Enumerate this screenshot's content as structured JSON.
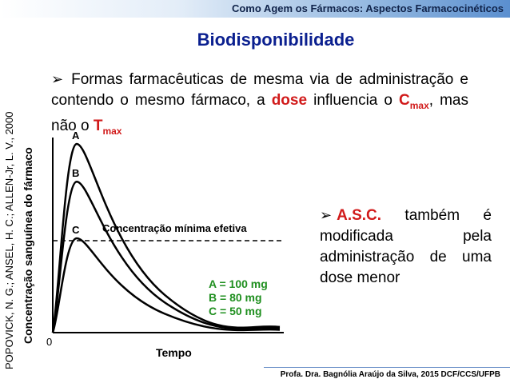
{
  "header": {
    "title": "Como Agem os Fármacos: Aspectos Farmacocinéticos"
  },
  "slide": {
    "title": "Biodisponibilidade"
  },
  "bullet1": {
    "arrow": "➢",
    "text_a": "Formas farmacêuticas de mesma via de administração e contendo o mesmo fármaco, a ",
    "dose": "dose",
    "text_b": " influencia o ",
    "cmax": "C",
    "cmax_sub": "max",
    "text_c": ", mas não o ",
    "tmax": "T",
    "tmax_sub": "max"
  },
  "reference": {
    "text": "POPOVICK, N. G.; ANSEL, H. C.; ALLEN-Jr, L. V., 2000"
  },
  "chart_data": {
    "type": "line",
    "ylabel": "Concentração sanguínea do fármaco",
    "xlabel": "Tempo",
    "origin_label": "0",
    "threshold_label": "Concentração mínima efetiva",
    "series": [
      {
        "name": "A",
        "peak": 100
      },
      {
        "name": "B",
        "peak": 80
      },
      {
        "name": "C",
        "peak": 50
      }
    ],
    "grid": false
  },
  "doses": {
    "a": "A = 100 mg",
    "b": "B = 80 mg",
    "c": "C = 50 mg"
  },
  "bullet2": {
    "arrow": "➢",
    "asc": "A.S.C.",
    "text": " também é modificada pela administração de uma dose menor"
  },
  "footer": {
    "text": "Profa. Dra. Bagnólia Araújo da Silva, 2015 DCF/CCS/UFPB"
  },
  "colors": {
    "title": "#0a1f8f",
    "accent_red": "#d11a1a",
    "dose_green": "#1f8f1f"
  }
}
